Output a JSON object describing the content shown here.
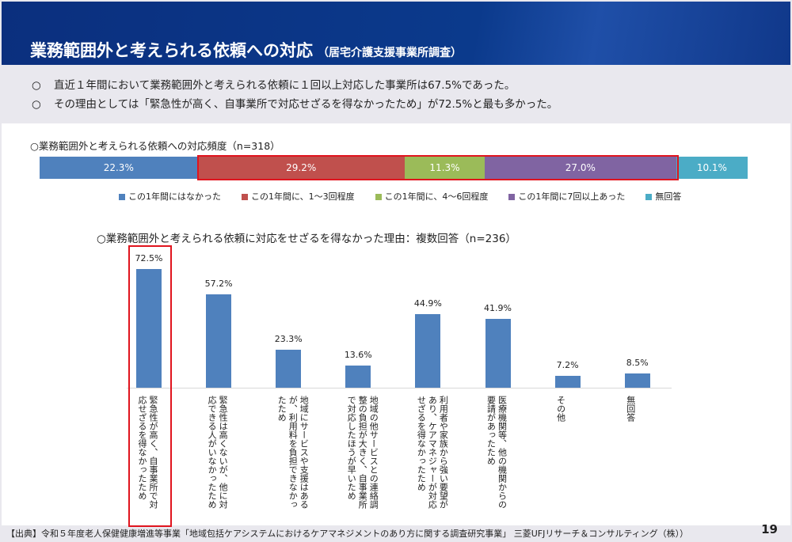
{
  "header": {
    "title": "業務範囲外と考えられる依頼への対応",
    "subtitle": "（居宅介護支援事業所調査）"
  },
  "bullets": [
    {
      "marker": "○",
      "text": "直近１年間において業務範囲外と考えられる依頼に１回以上対応した事業所は67.5%であった。"
    },
    {
      "marker": "○",
      "text": "その理由としては「緊急性が高く、自事業所で対応せざるを得なかったため」が72.5%と最も多かった。"
    }
  ],
  "chart_data": [
    {
      "type": "bar",
      "stacked": true,
      "orientation": "horizontal",
      "title": "○業務範囲外と考えられる依頼への対応頻度（n=318）",
      "series": [
        {
          "name": "この1年間にはなかった",
          "value": 22.3,
          "label": "22.3%",
          "color": "#4f81bd"
        },
        {
          "name": "この1年間に、1～3回程度",
          "value": 29.2,
          "label": "29.2%",
          "color": "#c0504d"
        },
        {
          "name": "この1年間に、4～6回程度",
          "value": 11.3,
          "label": "11.3%",
          "color": "#9bbb59"
        },
        {
          "name": "この1年間に7回以上あった",
          "value": 27.0,
          "label": "27.0%",
          "color": "#8064a2"
        },
        {
          "name": "無回答",
          "value": 10.1,
          "label": "10.1%",
          "color": "#4bacc6"
        }
      ],
      "legend": "bottom",
      "highlight": "segments 2-4 outlined in red"
    },
    {
      "type": "bar",
      "title": "○業務範囲外と考えられる依頼に対応をせざるを得なかった理由：複数回答（n=236）",
      "categories": [
        "緊急性が高く、自事業所で対応せざるを得なかったため",
        "緊急性は高くないが、他に対応できる人がいなかったため",
        "地域にサービスや支援はあるが、利用料を負担できなかったため",
        "地域の他サービスとの連絡調整の負担が大きく、自事業所で対応したほうが早いため",
        "利用者や家族から強い要望があり、ケアマネジャーが対応せざるを得なかったため",
        "医療機関等、他の機関からの要請があったため",
        "その他",
        "無回答"
      ],
      "values": [
        72.5,
        57.2,
        23.3,
        13.6,
        44.9,
        41.9,
        7.2,
        8.5
      ],
      "labels": [
        "72.5%",
        "57.2%",
        "23.3%",
        "13.6%",
        "44.9%",
        "41.9%",
        "7.2%",
        "8.5%"
      ],
      "color": "#4f81bd",
      "highlight": "first category outlined in red"
    }
  ],
  "footer": {
    "source": "【出典】令和５年度老人保健健康増進等事業「地域包括ケアシステムにおけるケアマネジメントのあり方に関する調査研究事業」 三菱UFJリサーチ＆コンサルティング（株））",
    "page": "19"
  }
}
